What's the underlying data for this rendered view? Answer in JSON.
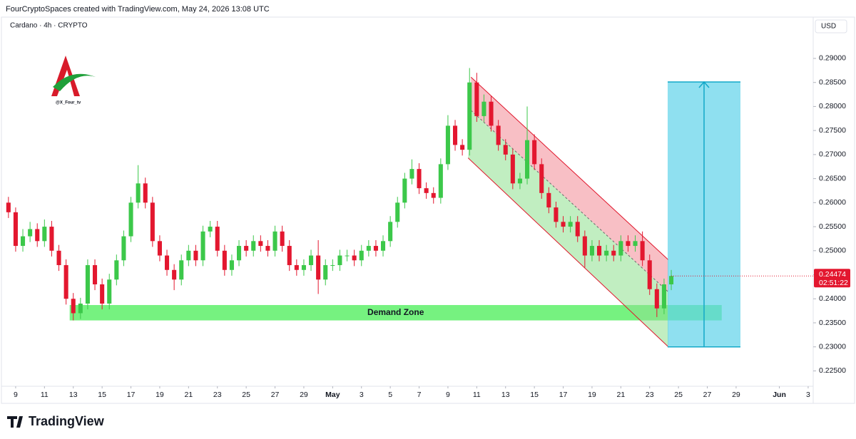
{
  "header": "FourCryptoSpaces created with TradingView.com, May 24, 2026 13:08 UTC",
  "brand": "TradingView",
  "watermark": "@X_Four_tv",
  "currency": "USD",
  "chart_data": {
    "type": "candlestick",
    "title": "Cardano · 4h · CRYPTO",
    "up_color": "#3cc84a",
    "down_color": "#e3172f",
    "xlim": [
      -0.69,
      55.35
    ],
    "ylim": [
      0.2221,
      0.298
    ],
    "xticks": [
      {
        "value": 0,
        "label": "9"
      },
      {
        "value": 2,
        "label": "11"
      },
      {
        "value": 4,
        "label": "13"
      },
      {
        "value": 6,
        "label": "15"
      },
      {
        "value": 8,
        "label": "17"
      },
      {
        "value": 10,
        "label": "19"
      },
      {
        "value": 12,
        "label": "21"
      },
      {
        "value": 14,
        "label": "23"
      },
      {
        "value": 16,
        "label": "25"
      },
      {
        "value": 18,
        "label": "27"
      },
      {
        "value": 20,
        "label": "29"
      },
      {
        "value": 22,
        "label": "May"
      },
      {
        "value": 24,
        "label": "3"
      },
      {
        "value": 26,
        "label": "5"
      },
      {
        "value": 28,
        "label": "7"
      },
      {
        "value": 30,
        "label": "9"
      },
      {
        "value": 32,
        "label": "11"
      },
      {
        "value": 34,
        "label": "13"
      },
      {
        "value": 36,
        "label": "15"
      },
      {
        "value": 38,
        "label": "17"
      },
      {
        "value": 40,
        "label": "19"
      },
      {
        "value": 42,
        "label": "21"
      },
      {
        "value": 44,
        "label": "23"
      },
      {
        "value": 46,
        "label": "25"
      },
      {
        "value": 48,
        "label": "27"
      },
      {
        "value": 50,
        "label": "29"
      },
      {
        "value": 53,
        "label": "Jun"
      },
      {
        "value": 55,
        "label": "3"
      }
    ],
    "yticks": [
      {
        "value": 0.225,
        "label": "0.22500"
      },
      {
        "value": 0.23,
        "label": "0.23000"
      },
      {
        "value": 0.235,
        "label": "0.23500"
      },
      {
        "value": 0.24,
        "label": "0.24000"
      },
      {
        "value": 0.245,
        "label": "0.24500"
      },
      {
        "value": 0.25,
        "label": "0.25000"
      },
      {
        "value": 0.255,
        "label": "0.25500"
      },
      {
        "value": 0.26,
        "label": "0.26000"
      },
      {
        "value": 0.265,
        "label": "0.26500"
      },
      {
        "value": 0.27,
        "label": "0.27000"
      },
      {
        "value": 0.275,
        "label": "0.27500"
      },
      {
        "value": 0.28,
        "label": "0.28000"
      },
      {
        "value": 0.285,
        "label": "0.28500"
      },
      {
        "value": 0.29,
        "label": "0.29000"
      }
    ],
    "x": [
      -0.5,
      0,
      0.5,
      1,
      1.5,
      2,
      2.5,
      3,
      3.5,
      4,
      4.5,
      5,
      5.5,
      6,
      6.5,
      7,
      7.5,
      8,
      8.5,
      9,
      9.5,
      10,
      10.5,
      11,
      11.5,
      12,
      12.5,
      13,
      13.5,
      14,
      14.5,
      15,
      15.5,
      16,
      16.5,
      17,
      17.5,
      18,
      18.5,
      19,
      19.5,
      20,
      20.5,
      21,
      21.5,
      22,
      22.5,
      23,
      23.5,
      24,
      24.5,
      25,
      25.5,
      26,
      26.5,
      27,
      27.5,
      28,
      28.5,
      29,
      29.5,
      30,
      30.5,
      31,
      31.5,
      32,
      32.5,
      33,
      33.5,
      34,
      34.5,
      35,
      35.5,
      36,
      36.5,
      37,
      37.5,
      38,
      38.5,
      39,
      39.5,
      40,
      40.5,
      41,
      41.5,
      42,
      42.5,
      43,
      43.5,
      44,
      44.5,
      45,
      45.5
    ],
    "candles": [
      [
        0.26,
        0.2612,
        0.2568,
        0.258
      ],
      [
        0.258,
        0.259,
        0.2498,
        0.251
      ],
      [
        0.251,
        0.2545,
        0.2498,
        0.253
      ],
      [
        0.253,
        0.256,
        0.2518,
        0.2545
      ],
      [
        0.2545,
        0.2557,
        0.2508,
        0.252
      ],
      [
        0.252,
        0.2565,
        0.2508,
        0.255
      ],
      [
        0.255,
        0.2562,
        0.2488,
        0.25
      ],
      [
        0.25,
        0.2512,
        0.2458,
        0.247
      ],
      [
        0.247,
        0.2482,
        0.2388,
        0.24
      ],
      [
        0.24,
        0.2412,
        0.2355,
        0.237
      ],
      [
        0.237,
        0.2402,
        0.2358,
        0.239
      ],
      [
        0.239,
        0.2482,
        0.2378,
        0.247
      ],
      [
        0.247,
        0.2482,
        0.2418,
        0.243
      ],
      [
        0.243,
        0.2442,
        0.2378,
        0.239
      ],
      [
        0.239,
        0.2452,
        0.2378,
        0.244
      ],
      [
        0.244,
        0.2492,
        0.2428,
        0.248
      ],
      [
        0.248,
        0.2542,
        0.2468,
        0.253
      ],
      [
        0.253,
        0.2612,
        0.2518,
        0.26
      ],
      [
        0.26,
        0.2678,
        0.2588,
        0.264
      ],
      [
        0.264,
        0.2652,
        0.2588,
        0.26
      ],
      [
        0.26,
        0.2612,
        0.2508,
        0.252
      ],
      [
        0.252,
        0.2532,
        0.2478,
        0.249
      ],
      [
        0.249,
        0.2502,
        0.2448,
        0.246
      ],
      [
        0.246,
        0.2472,
        0.2418,
        0.244
      ],
      [
        0.244,
        0.2492,
        0.2428,
        0.248
      ],
      [
        0.248,
        0.2512,
        0.2468,
        0.25
      ],
      [
        0.25,
        0.2512,
        0.2468,
        0.248
      ],
      [
        0.248,
        0.2552,
        0.2468,
        0.254
      ],
      [
        0.254,
        0.2562,
        0.2528,
        0.255
      ],
      [
        0.255,
        0.2562,
        0.2488,
        0.25
      ],
      [
        0.25,
        0.2512,
        0.2448,
        0.246
      ],
      [
        0.246,
        0.2492,
        0.2448,
        0.248
      ],
      [
        0.248,
        0.2522,
        0.2468,
        0.251
      ],
      [
        0.251,
        0.2522,
        0.2488,
        0.25
      ],
      [
        0.25,
        0.2532,
        0.2488,
        0.252
      ],
      [
        0.252,
        0.2532,
        0.2498,
        0.251
      ],
      [
        0.251,
        0.2522,
        0.2488,
        0.25
      ],
      [
        0.25,
        0.2552,
        0.2488,
        0.254
      ],
      [
        0.254,
        0.2552,
        0.2498,
        0.251
      ],
      [
        0.251,
        0.2522,
        0.2458,
        0.247
      ],
      [
        0.247,
        0.2482,
        0.2448,
        0.246
      ],
      [
        0.246,
        0.2482,
        0.2448,
        0.247
      ],
      [
        0.247,
        0.2502,
        0.2458,
        0.249
      ],
      [
        0.249,
        0.2522,
        0.241,
        0.244
      ],
      [
        0.244,
        0.2482,
        0.2428,
        0.247
      ],
      [
        0.247,
        0.2482,
        0.2458,
        0.247
      ],
      [
        0.247,
        0.2502,
        0.2458,
        0.249
      ],
      [
        0.249,
        0.2502,
        0.2478,
        0.249
      ],
      [
        0.249,
        0.2502,
        0.2468,
        0.248
      ],
      [
        0.248,
        0.2512,
        0.2468,
        0.25
      ],
      [
        0.25,
        0.2522,
        0.2488,
        0.251
      ],
      [
        0.251,
        0.2522,
        0.2488,
        0.25
      ],
      [
        0.25,
        0.2532,
        0.2488,
        0.252
      ],
      [
        0.252,
        0.2572,
        0.2508,
        0.256
      ],
      [
        0.256,
        0.2612,
        0.2548,
        0.26
      ],
      [
        0.26,
        0.2662,
        0.2588,
        0.265
      ],
      [
        0.265,
        0.269,
        0.2638,
        0.267
      ],
      [
        0.267,
        0.2682,
        0.2618,
        0.263
      ],
      [
        0.263,
        0.2642,
        0.2608,
        0.262
      ],
      [
        0.262,
        0.2632,
        0.2598,
        0.261
      ],
      [
        0.261,
        0.2692,
        0.2598,
        0.268
      ],
      [
        0.268,
        0.2782,
        0.2668,
        0.276
      ],
      [
        0.276,
        0.2772,
        0.2708,
        0.272
      ],
      [
        0.272,
        0.2732,
        0.2698,
        0.271
      ],
      [
        0.271,
        0.288,
        0.2698,
        0.285
      ],
      [
        0.285,
        0.287,
        0.2768,
        0.278
      ],
      [
        0.278,
        0.2825,
        0.2768,
        0.281
      ],
      [
        0.281,
        0.2822,
        0.2748,
        0.276
      ],
      [
        0.276,
        0.2772,
        0.2708,
        0.272
      ],
      [
        0.272,
        0.2732,
        0.2688,
        0.27
      ],
      [
        0.27,
        0.2712,
        0.2628,
        0.264
      ],
      [
        0.264,
        0.2662,
        0.2628,
        0.265
      ],
      [
        0.265,
        0.28,
        0.2638,
        0.273
      ],
      [
        0.273,
        0.2742,
        0.2668,
        0.268
      ],
      [
        0.268,
        0.2692,
        0.2608,
        0.262
      ],
      [
        0.262,
        0.2632,
        0.2578,
        0.259
      ],
      [
        0.259,
        0.2602,
        0.2548,
        0.256
      ],
      [
        0.256,
        0.2572,
        0.2538,
        0.255
      ],
      [
        0.255,
        0.2572,
        0.2538,
        0.256
      ],
      [
        0.256,
        0.2572,
        0.2518,
        0.253
      ],
      [
        0.253,
        0.2542,
        0.2465,
        0.249
      ],
      [
        0.249,
        0.2522,
        0.2478,
        0.251
      ],
      [
        0.251,
        0.2522,
        0.2478,
        0.249
      ],
      [
        0.249,
        0.2512,
        0.2478,
        0.25
      ],
      [
        0.25,
        0.2512,
        0.2478,
        0.249
      ],
      [
        0.249,
        0.2532,
        0.2478,
        0.252
      ],
      [
        0.252,
        0.2532,
        0.2498,
        0.251
      ],
      [
        0.251,
        0.2532,
        0.2498,
        0.252
      ],
      [
        0.252,
        0.254,
        0.2468,
        0.248
      ],
      [
        0.248,
        0.2492,
        0.2408,
        0.242
      ],
      [
        0.242,
        0.2432,
        0.2362,
        0.238
      ],
      [
        0.238,
        0.2442,
        0.2368,
        0.243
      ],
      [
        0.243,
        0.246,
        0.2418,
        0.24474
      ]
    ],
    "last_price": 0.24474,
    "countdown": "02:51:22",
    "last_color": "#e3172f",
    "demand_zone": {
      "label": "Demand Zone",
      "x": [
        3.75,
        49
      ],
      "y": [
        0.2355,
        0.2387
      ],
      "color": "#5ef06a"
    },
    "channel": {
      "upper": [
        [
          31.6,
          0.2861
        ],
        [
          45.3,
          0.2481
        ]
      ],
      "middle": [
        [
          31.6,
          0.2792
        ],
        [
          45.3,
          0.2414
        ]
      ],
      "lower": [
        [
          31.4,
          0.2693
        ],
        [
          45.3,
          0.23
        ]
      ],
      "upper_color": "#f28b95",
      "lower_color": "#8ee08e"
    },
    "position": {
      "x": [
        45.25,
        50.3
      ],
      "y": [
        0.23,
        0.2851
      ],
      "color": "#5fd3ea"
    }
  }
}
